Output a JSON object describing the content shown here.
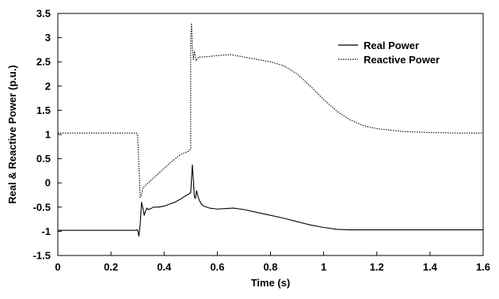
{
  "chart_data": {
    "type": "line",
    "title": "",
    "xlabel": "Time (s)",
    "ylabel": "Real & Reactive Power (p.u.)",
    "xlim": [
      0,
      1.6
    ],
    "ylim": [
      -1.5,
      3.5
    ],
    "xticks": [
      0,
      0.2,
      0.4,
      0.6,
      0.8,
      1,
      1.2,
      1.4,
      1.6
    ],
    "xtick_labels": [
      "0",
      "0.2",
      "0.4",
      "0.6",
      "0.8",
      "1",
      "1.2",
      "1.4",
      "1.6"
    ],
    "yticks": [
      -1.5,
      -1,
      -0.5,
      0,
      0.5,
      1,
      1.5,
      2,
      2.5,
      3,
      3.5
    ],
    "ytick_labels": [
      "-1.5",
      "-1",
      "-0.5",
      "0",
      "0.5",
      "1",
      "1.5",
      "2",
      "2.5",
      "3",
      "3.5"
    ],
    "grid": false,
    "legend_position": "top-right",
    "series": [
      {
        "name": "Real Power",
        "style": "solid",
        "color": "#000000",
        "x": [
          0,
          0.29,
          0.3,
          0.305,
          0.31,
          0.315,
          0.32,
          0.325,
          0.33,
          0.335,
          0.34,
          0.35,
          0.36,
          0.38,
          0.4,
          0.42,
          0.44,
          0.46,
          0.48,
          0.49,
          0.5,
          0.503,
          0.506,
          0.51,
          0.514,
          0.518,
          0.522,
          0.526,
          0.53,
          0.54,
          0.55,
          0.57,
          0.6,
          0.63,
          0.66,
          0.7,
          0.75,
          0.8,
          0.85,
          0.9,
          0.95,
          1.0,
          1.05,
          1.1,
          1.15,
          1.2,
          1.3,
          1.4,
          1.5,
          1.6
        ],
        "y": [
          -0.98,
          -0.98,
          -0.97,
          -1.1,
          -0.85,
          -0.4,
          -0.52,
          -0.67,
          -0.58,
          -0.52,
          -0.55,
          -0.53,
          -0.5,
          -0.5,
          -0.48,
          -0.44,
          -0.4,
          -0.34,
          -0.27,
          -0.24,
          -0.2,
          0.1,
          0.37,
          0.05,
          -0.3,
          -0.32,
          -0.16,
          -0.25,
          -0.33,
          -0.44,
          -0.48,
          -0.52,
          -0.54,
          -0.53,
          -0.52,
          -0.55,
          -0.61,
          -0.67,
          -0.73,
          -0.8,
          -0.87,
          -0.92,
          -0.96,
          -0.97,
          -0.97,
          -0.97,
          -0.97,
          -0.97,
          -0.97,
          -0.97
        ]
      },
      {
        "name": "Reactive Power",
        "style": "dotted",
        "color": "#000000",
        "x": [
          0,
          0.295,
          0.3,
          0.31,
          0.315,
          0.32,
          0.33,
          0.35,
          0.38,
          0.42,
          0.46,
          0.49,
          0.5,
          0.5,
          0.503,
          0.506,
          0.51,
          0.514,
          0.52,
          0.53,
          0.55,
          0.6,
          0.65,
          0.7,
          0.75,
          0.8,
          0.85,
          0.9,
          0.95,
          1.0,
          1.05,
          1.1,
          1.15,
          1.2,
          1.3,
          1.4,
          1.5,
          1.6
        ],
        "y": [
          1.03,
          1.03,
          1.0,
          -0.3,
          -0.25,
          -0.1,
          -0.05,
          0.05,
          0.2,
          0.4,
          0.58,
          0.65,
          0.7,
          3.0,
          3.3,
          2.8,
          2.55,
          2.72,
          2.52,
          2.6,
          2.6,
          2.63,
          2.65,
          2.6,
          2.55,
          2.5,
          2.42,
          2.25,
          2.0,
          1.72,
          1.48,
          1.3,
          1.18,
          1.12,
          1.06,
          1.04,
          1.03,
          1.03
        ]
      }
    ]
  }
}
